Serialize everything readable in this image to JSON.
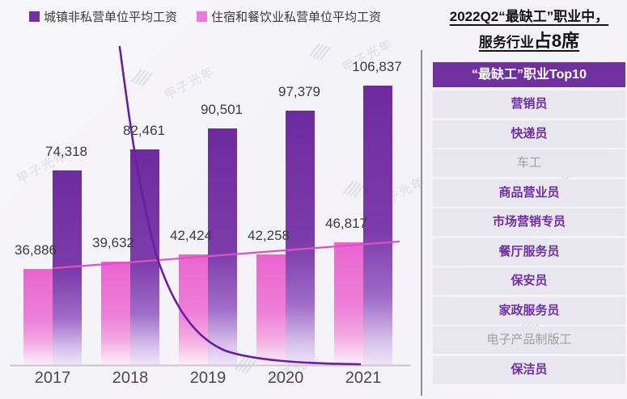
{
  "legend": {
    "items": [
      {
        "label": "城镇非私营单位平均工资",
        "color": "#7030a0"
      },
      {
        "label": "住宿和餐饮业私营单位平均工资",
        "color": "#ea79d9"
      }
    ]
  },
  "chart_data": {
    "type": "bar",
    "categories": [
      "2017",
      "2018",
      "2019",
      "2020",
      "2021"
    ],
    "series": [
      {
        "name": "城镇非私营单位平均工资",
        "values": [
          74318,
          82461,
          90501,
          97379,
          106837
        ],
        "labels": [
          "74,318",
          "82,461",
          "90,501",
          "97,379",
          "106,837"
        ],
        "color": "#7030a0"
      },
      {
        "name": "住宿和餐饮业私营单位平均工资",
        "values": [
          36886,
          39632,
          42424,
          42258,
          46817
        ],
        "labels": [
          "36,886",
          "39,632",
          "42,424",
          "42,258",
          "46,817"
        ],
        "color": "#ea79d9"
      }
    ],
    "trend_line": {
      "series": "住宿和餐饮业私营单位平均工资",
      "color": "#e24fc0"
    },
    "decay_curve": {
      "color": "#6a1fa2",
      "description": "decorative steep decreasing curve flattening toward baseline"
    },
    "ylim": [
      0,
      110000
    ],
    "grid": false,
    "legend_position": "top-left",
    "baseline_color": "#c9c9c9"
  },
  "panel": {
    "title_line1": "2022Q2“最缺工”职业中，",
    "title_line2_normal": "服务行业",
    "title_line2_bold": "占8席",
    "header": "“最缺工”职业Top10",
    "header_bg": "#7030a0",
    "row_bg": "#e9e7ee",
    "highlight_color": "#7030a0",
    "muted_color": "#9e9e9e",
    "items": [
      {
        "label": "营销员",
        "highlight": true
      },
      {
        "label": "快递员",
        "highlight": true
      },
      {
        "label": "车工",
        "highlight": false
      },
      {
        "label": "商品营业员",
        "highlight": true
      },
      {
        "label": "市场营销专员",
        "highlight": true
      },
      {
        "label": "餐厅服务员",
        "highlight": true
      },
      {
        "label": "保安员",
        "highlight": true
      },
      {
        "label": "家政服务员",
        "highlight": true
      },
      {
        "label": "电子产品制版工",
        "highlight": false
      },
      {
        "label": "保洁员",
        "highlight": true
      }
    ]
  },
  "watermark": {
    "text": "甲子光年",
    "hatch": "||||"
  }
}
